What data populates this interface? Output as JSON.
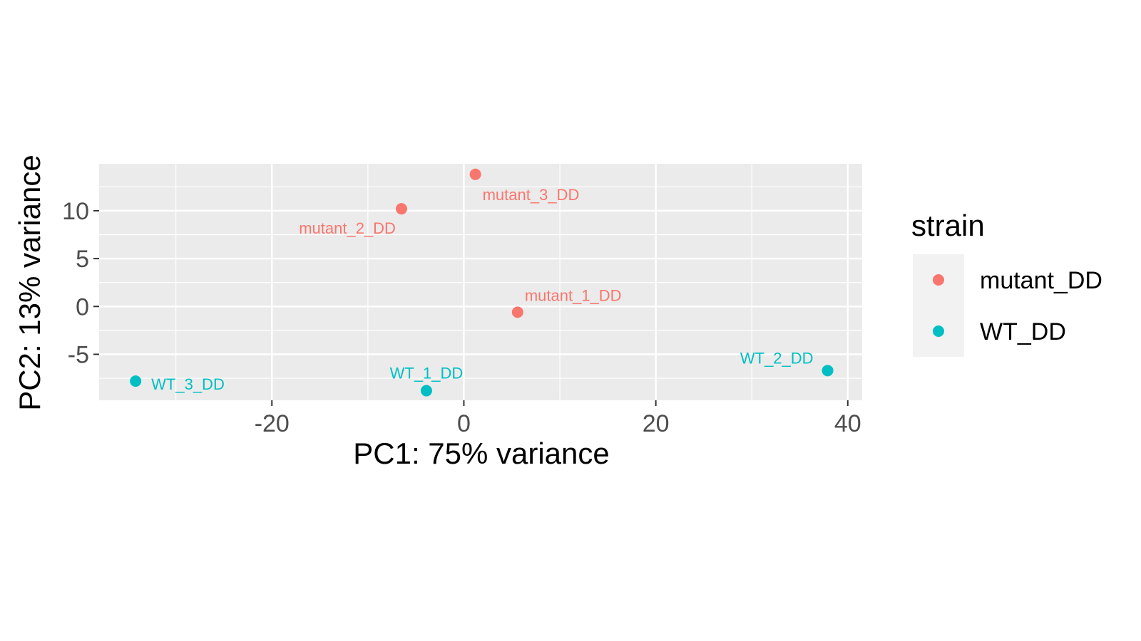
{
  "chart_data": {
    "type": "scatter",
    "xlabel": "PC1: 75% variance",
    "ylabel": "PC2: 13% variance",
    "xlim": [
      -38,
      41.5
    ],
    "ylim": [
      -9.8,
      14.9
    ],
    "x_ticks": [
      -20,
      0,
      20,
      40
    ],
    "x_tick_labels": [
      "-20",
      "0",
      "20",
      "40"
    ],
    "y_ticks": [
      -5,
      0,
      5,
      10
    ],
    "y_tick_labels": [
      "-5",
      "0",
      "5",
      "10"
    ],
    "grid": true,
    "legend": {
      "title": "strain",
      "placement": "right",
      "entries": [
        {
          "name": "mutant_DD",
          "color": "#F8766D"
        },
        {
          "name": "WT_DD",
          "color": "#00BFC4"
        }
      ]
    },
    "series": [
      {
        "name": "mutant_DD",
        "color": "#F8766D",
        "points": [
          {
            "label": "mutant_1_DD",
            "x": 5.6,
            "y": -0.6
          },
          {
            "label": "mutant_2_DD",
            "x": -6.5,
            "y": 10.2
          },
          {
            "label": "mutant_3_DD",
            "x": 1.2,
            "y": 13.8
          }
        ]
      },
      {
        "name": "WT_DD",
        "color": "#00BFC4",
        "points": [
          {
            "label": "WT_1_DD",
            "x": -3.9,
            "y": -8.8
          },
          {
            "label": "WT_2_DD",
            "x": 37.9,
            "y": -6.7
          },
          {
            "label": "WT_3_DD",
            "x": -34.2,
            "y": -7.8
          }
        ]
      }
    ]
  },
  "colors": {
    "panel_background": "#EBEBEB",
    "grid_major": "#FFFFFF",
    "legend_key_background": "#F2F2F2"
  }
}
